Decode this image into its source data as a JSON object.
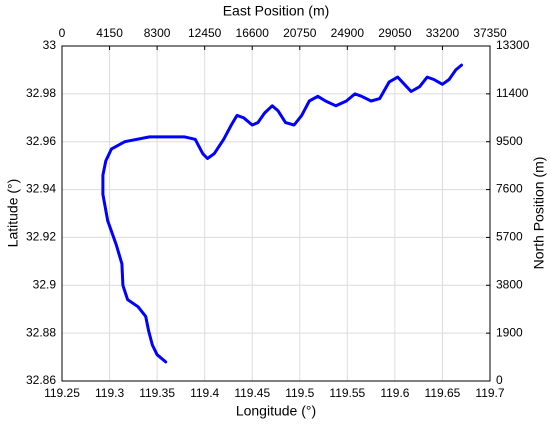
{
  "chart_data": {
    "type": "line",
    "x_label": "Longitude (°)",
    "y_label": "Latitude (°)",
    "x2_label": "East Position (m)",
    "y2_label": "North Position (m)",
    "x": [
      119.359,
      119.35,
      119.345,
      119.341,
      119.338,
      119.33,
      119.319,
      119.314,
      119.313,
      119.307,
      119.298,
      119.293,
      119.293,
      119.296,
      119.302,
      119.316,
      119.342,
      119.379,
      119.39,
      119.398,
      119.403,
      119.41,
      119.42,
      119.428,
      119.434,
      119.441,
      119.45,
      119.456,
      119.463,
      119.471,
      119.477,
      119.485,
      119.494,
      119.502,
      119.51,
      119.519,
      119.527,
      119.538,
      119.549,
      119.558,
      119.565,
      119.575,
      119.584,
      119.594,
      119.603,
      119.61,
      119.617,
      119.626,
      119.634,
      119.641,
      119.65,
      119.657,
      119.664,
      119.67
    ],
    "values": [
      32.868,
      32.871,
      32.875,
      32.881,
      32.887,
      32.891,
      32.894,
      32.9,
      32.909,
      32.917,
      32.927,
      32.938,
      32.946,
      32.952,
      32.957,
      32.96,
      32.962,
      32.962,
      32.961,
      32.955,
      32.953,
      32.955,
      32.961,
      32.967,
      32.971,
      32.97,
      32.967,
      32.968,
      32.972,
      32.975,
      32.973,
      32.968,
      32.967,
      32.971,
      32.977,
      32.979,
      32.977,
      32.975,
      32.977,
      32.98,
      32.979,
      32.977,
      32.978,
      32.985,
      32.987,
      32.984,
      32.981,
      32.983,
      32.987,
      32.986,
      32.984,
      32.986,
      32.99,
      32.992
    ],
    "color": "#0000ff",
    "xlim": [
      119.25,
      119.7
    ],
    "xticks": [
      119.25,
      119.3,
      119.35,
      119.4,
      119.45,
      119.5,
      119.55,
      119.6,
      119.65,
      119.7
    ],
    "ylim": [
      32.86,
      33
    ],
    "yticks": [
      32.86,
      32.88,
      32.9,
      32.92,
      32.94,
      32.96,
      32.98,
      33
    ],
    "x2lim": [
      0,
      37350
    ],
    "x2ticks": [
      0,
      4150,
      8300,
      12450,
      16600,
      20750,
      24900,
      29050,
      33200,
      37350
    ],
    "y2lim": [
      0,
      13300
    ],
    "y2ticks": [
      0,
      1900,
      3800,
      5700,
      7600,
      9500,
      11400,
      13300
    ],
    "grid": true
  }
}
